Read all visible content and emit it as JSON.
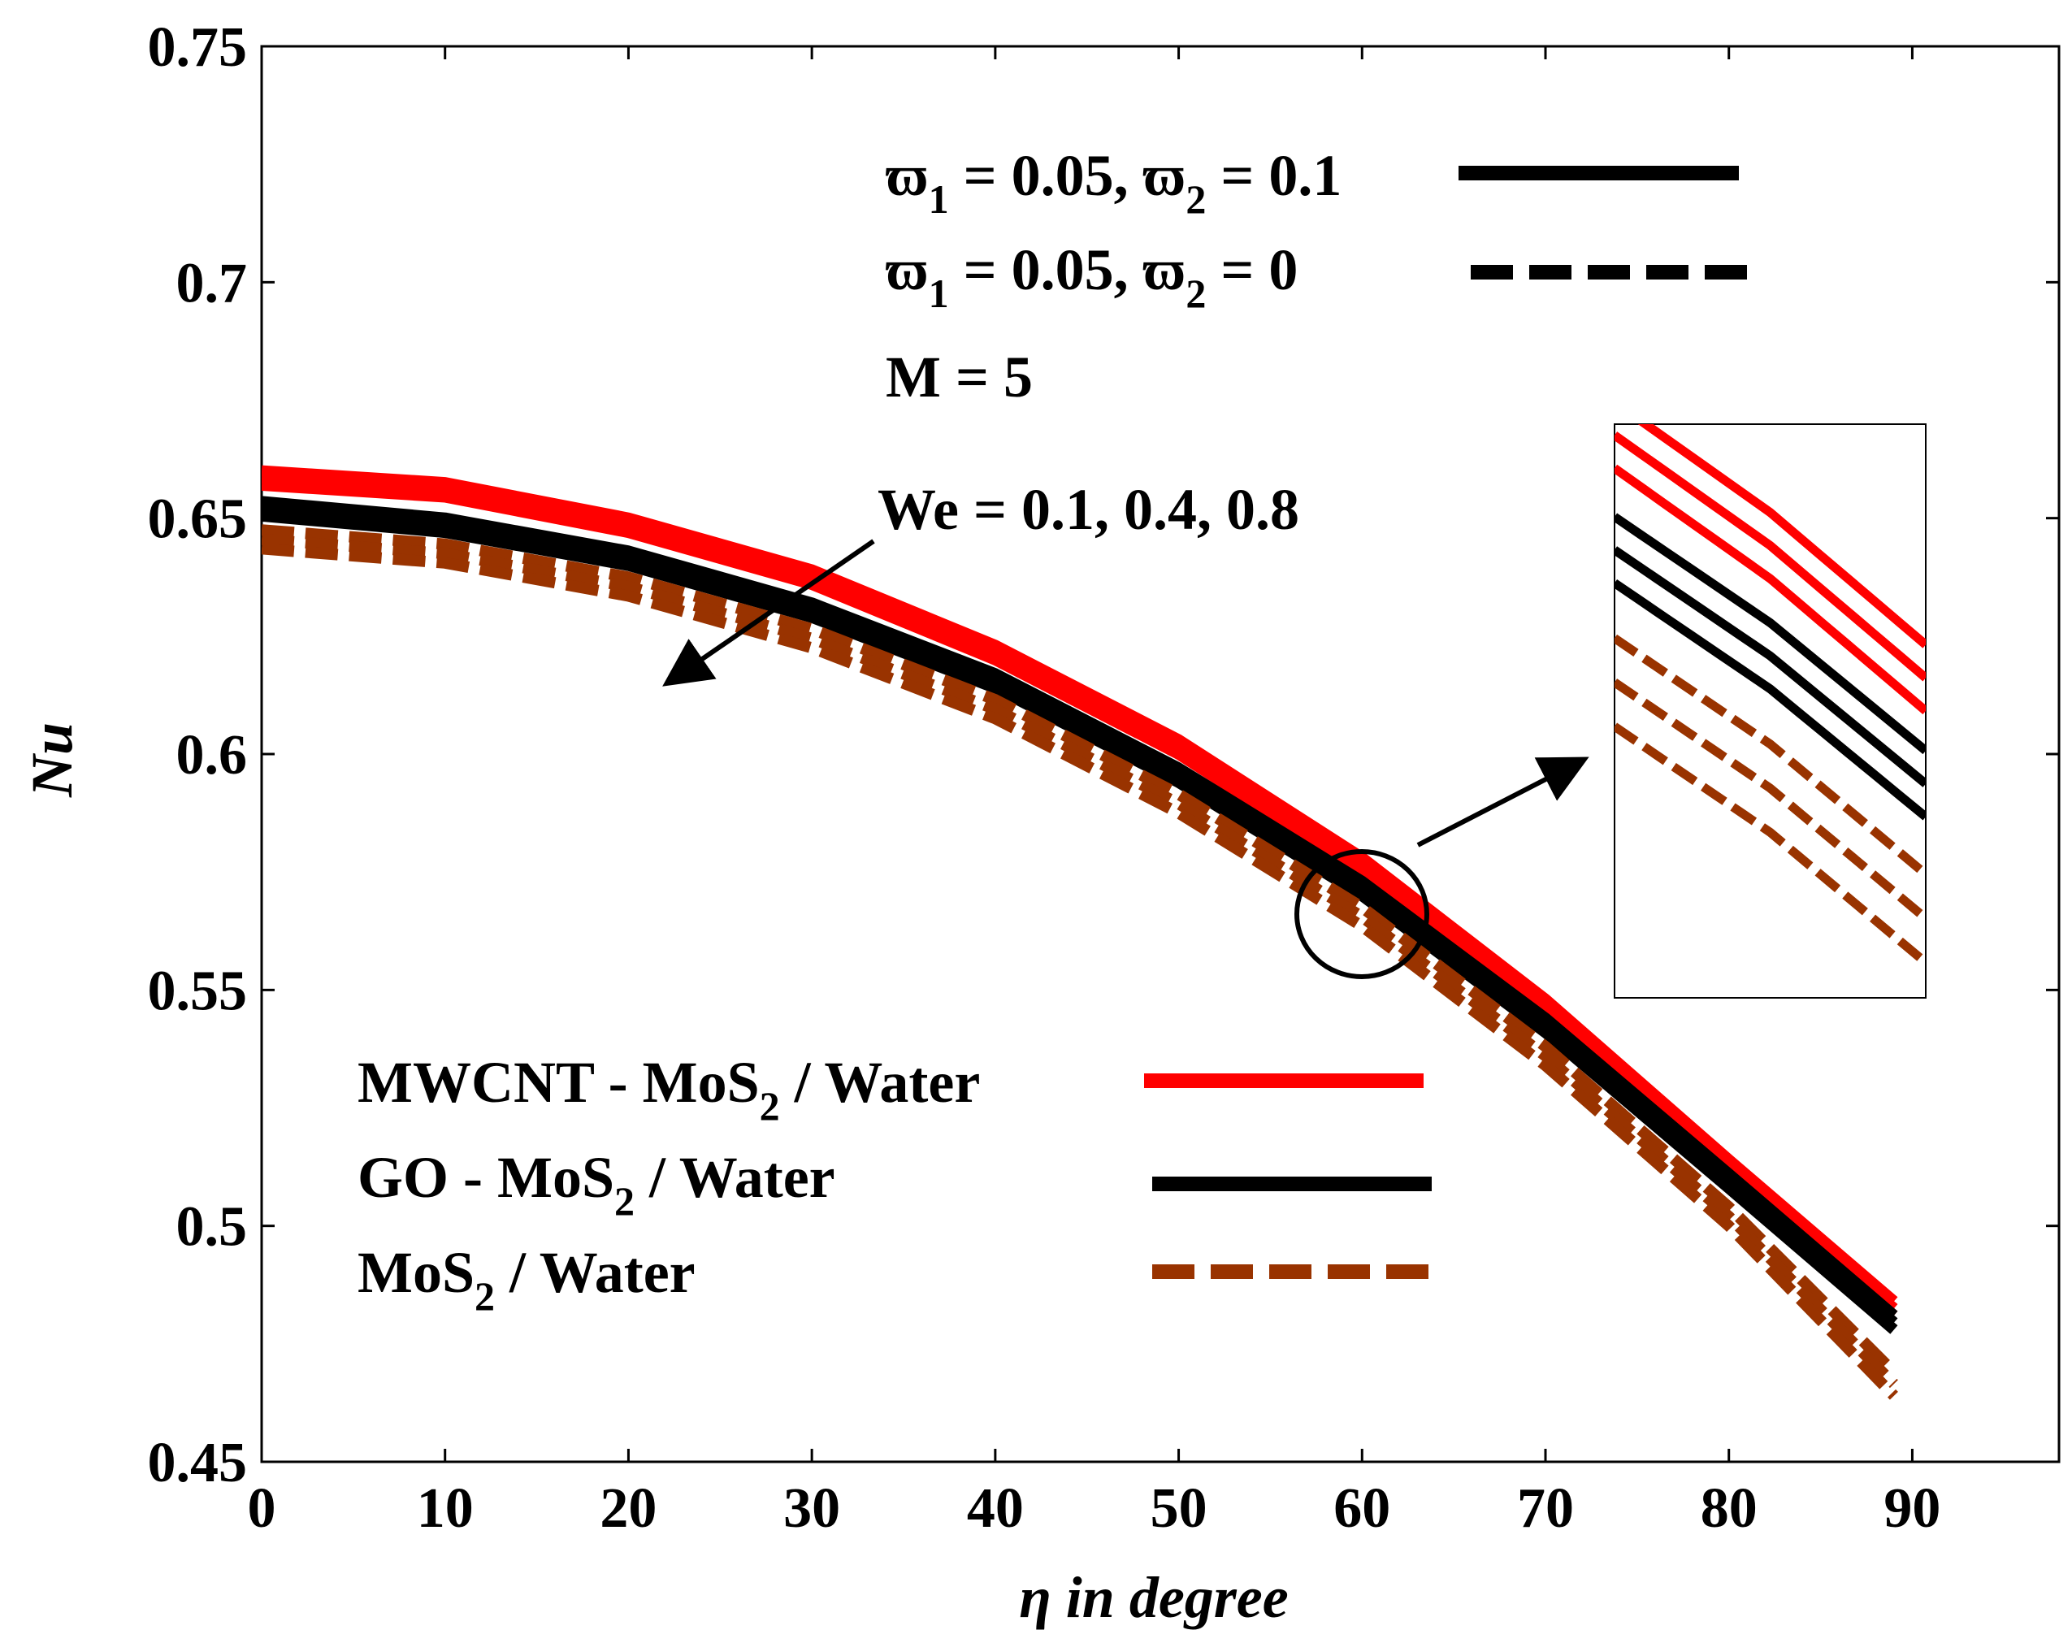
{
  "chart_data": {
    "type": "line",
    "title": "",
    "xlabel": "η in degree",
    "ylabel": "Nu",
    "xlim": [
      0,
      98
    ],
    "ylim": [
      0.45,
      0.75
    ],
    "xticks": [
      0,
      10,
      20,
      30,
      40,
      50,
      60,
      70,
      80,
      90
    ],
    "xtick_labels": [
      "0",
      "10",
      "20",
      "30",
      "40",
      "50",
      "60",
      "70",
      "80",
      "90"
    ],
    "yticks": [
      0.45,
      0.5,
      0.55,
      0.6,
      0.65,
      0.7,
      0.75
    ],
    "ytick_labels": [
      "0.45",
      "0.5",
      "0.55",
      "0.6",
      "0.65",
      "0.7",
      "0.75"
    ],
    "grid": false,
    "colors": {
      "mwcnt": "#ff0000",
      "go": "#000000",
      "mos2": "#993300"
    },
    "x": [
      0,
      10,
      20,
      30,
      40,
      50,
      60,
      70,
      80,
      89
    ],
    "series": [
      {
        "name": "MWCNT - MoS2 / Water, We = 0.1",
        "fluid": "mwcnt",
        "style": "solid",
        "values": [
          0.66,
          0.6575,
          0.65,
          0.639,
          0.623,
          0.603,
          0.578,
          0.548,
          0.514,
          0.484
        ]
      },
      {
        "name": "MWCNT - MoS2 / Water, We = 0.4",
        "fluid": "mwcnt",
        "style": "solid",
        "values": [
          0.6585,
          0.656,
          0.6485,
          0.6375,
          0.6215,
          0.6015,
          0.5765,
          0.5465,
          0.5125,
          0.4825
        ]
      },
      {
        "name": "MWCNT - MoS2 / Water, We = 0.8",
        "fluid": "mwcnt",
        "style": "solid",
        "values": [
          0.657,
          0.6545,
          0.647,
          0.636,
          0.62,
          0.6,
          0.575,
          0.545,
          0.511,
          0.481
        ]
      },
      {
        "name": "GO - MoS2 / Water, We = 0.1",
        "fluid": "go",
        "style": "solid",
        "values": [
          0.6535,
          0.65,
          0.643,
          0.632,
          0.617,
          0.597,
          0.573,
          0.544,
          0.511,
          0.481
        ]
      },
      {
        "name": "GO - MoS2 / Water, We = 0.4",
        "fluid": "go",
        "style": "solid",
        "values": [
          0.652,
          0.6485,
          0.6415,
          0.6305,
          0.6155,
          0.5955,
          0.5715,
          0.5425,
          0.5095,
          0.4795
        ]
      },
      {
        "name": "GO - MoS2 / Water, We = 0.8",
        "fluid": "go",
        "style": "solid",
        "values": [
          0.6505,
          0.647,
          0.64,
          0.629,
          0.614,
          0.594,
          0.57,
          0.541,
          0.508,
          0.478
        ]
      },
      {
        "name": "MoS2 / Water, We = 0.1",
        "fluid": "mos2",
        "style": "dashed",
        "values": [
          0.6475,
          0.6445,
          0.6375,
          0.6265,
          0.6115,
          0.5915,
          0.5675,
          0.538,
          0.504,
          0.469
        ]
      },
      {
        "name": "MoS2 / Water, We = 0.4",
        "fluid": "mos2",
        "style": "dashed",
        "values": [
          0.6455,
          0.6425,
          0.6355,
          0.6245,
          0.6095,
          0.5895,
          0.5655,
          0.536,
          0.502,
          0.4665
        ]
      },
      {
        "name": "MoS2 / Water, We = 0.8",
        "fluid": "mos2",
        "style": "dashed",
        "values": [
          0.6435,
          0.6405,
          0.6335,
          0.6225,
          0.6075,
          0.5875,
          0.5635,
          0.534,
          0.5,
          0.464
        ]
      }
    ],
    "legend_top": [
      {
        "w1": "ϖ",
        "w1_sub": "1",
        "w1_val": " = 0.05, ",
        "w2": "ϖ",
        "w2_sub": "2",
        "w2_val": " = 0.1",
        "style": "solid"
      },
      {
        "w1": "ϖ",
        "w1_sub": "1",
        "w1_val": " = 0.05, ",
        "w2": "ϖ",
        "w2_sub": "2",
        "w2_val": " = 0",
        "style": "dashed"
      }
    ],
    "param_text": "M = 5",
    "annotation": "We = 0.1, 0.4, 0.8",
    "legend_bottom": [
      {
        "pre": "MWCNT - MoS",
        "sub": "2",
        "post": " / Water",
        "fluid": "mwcnt",
        "style": "solid"
      },
      {
        "pre": "GO - MoS",
        "sub": "2",
        "post": " / Water",
        "fluid": "go",
        "style": "solid"
      },
      {
        "pre": "MoS",
        "sub": "2",
        "post": " / Water",
        "fluid": "mos2",
        "style": "dashed"
      }
    ],
    "inset": {
      "description": "zoomed view near η = 60",
      "xlim": [
        58,
        62
      ],
      "ylim": [
        0.556,
        0.582
      ]
    }
  }
}
